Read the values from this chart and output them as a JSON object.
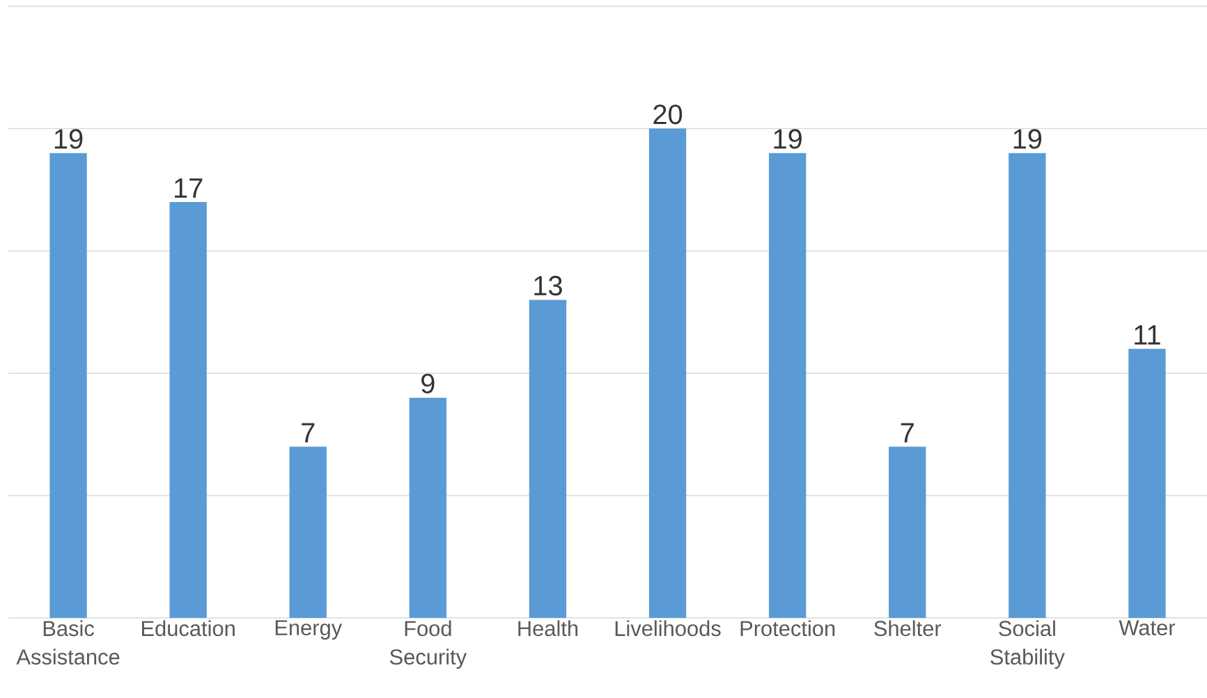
{
  "chart_data": {
    "type": "bar",
    "categories": [
      "Basic Assistance",
      "Education",
      "Energy",
      "Food Security",
      "Health",
      "Livelihoods",
      "Protection",
      "Shelter",
      "Social Stability",
      "Water"
    ],
    "values": [
      19,
      17,
      7,
      9,
      13,
      20,
      19,
      7,
      19,
      11
    ],
    "color": "#5b9bd5",
    "ylim": [
      0,
      25
    ],
    "yticks": [
      {
        "value": 0,
        "label": null
      },
      {
        "value": 5,
        "label": null
      },
      {
        "value": 10,
        "label": null
      },
      {
        "value": 15,
        "label": null
      },
      {
        "value": 20,
        "label": null
      },
      {
        "value": 25,
        "label": null
      }
    ],
    "tick_labels": "x",
    "grid": "y",
    "data_labels": true
  }
}
